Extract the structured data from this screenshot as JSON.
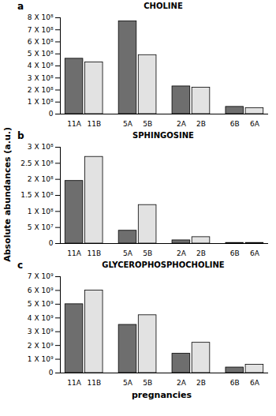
{
  "y_label": "Absolute abundances (a.u.)",
  "x_label": "pregnancies",
  "chart_data": [
    {
      "type": "bar",
      "panel": "a",
      "title": "CHOLINE",
      "categories": [
        "11A",
        "11B",
        "5A",
        "5B",
        "2A",
        "2B",
        "6B",
        "6A"
      ],
      "values": [
        460000000,
        430000000,
        770000000,
        490000000,
        230000000,
        220000000,
        60000000,
        50000000
      ],
      "colors": [
        "#6e6e6e",
        "#e2e2e2",
        "#6e6e6e",
        "#e2e2e2",
        "#6e6e6e",
        "#e2e2e2",
        "#6e6e6e",
        "#e2e2e2"
      ],
      "ylim": [
        0,
        800000000
      ],
      "yticks": [
        0,
        {
          "value": 100000000,
          "label": "1 X 10⁸"
        },
        {
          "value": 200000000,
          "label": "2 X 10⁸"
        },
        {
          "value": 300000000,
          "label": "3 X 10⁸"
        },
        {
          "value": 400000000,
          "label": "4 X 10⁸"
        },
        {
          "value": 500000000,
          "label": "5 X 10⁸"
        },
        {
          "value": 600000000,
          "label": "6 X 10⁸"
        },
        {
          "value": 700000000,
          "label": "7 X 10⁸"
        },
        {
          "value": 800000000,
          "label": "8 X 10⁸"
        }
      ]
    },
    {
      "type": "bar",
      "panel": "b",
      "title": "SPHINGOSINE",
      "categories": [
        "11A",
        "11B",
        "5A",
        "5B",
        "2A",
        "2B",
        "6B",
        "6A"
      ],
      "values": [
        195000000,
        270000000,
        40000000,
        120000000,
        10000000,
        20000000,
        2000000,
        2000000
      ],
      "colors": [
        "#6e6e6e",
        "#e2e2e2",
        "#6e6e6e",
        "#e2e2e2",
        "#6e6e6e",
        "#e2e2e2",
        "#6e6e6e",
        "#e2e2e2"
      ],
      "ylim": [
        0,
        300000000
      ],
      "yticks": [
        0,
        {
          "value": 50000000,
          "label": "5 X 10⁷"
        },
        {
          "value": 100000000,
          "label": "1 X 10⁸"
        },
        {
          "value": 150000000,
          "label": "1.5 X 10⁸"
        },
        {
          "value": 200000000,
          "label": "2 X 10⁸"
        },
        {
          "value": 250000000,
          "label": "2.5 X 10⁸"
        },
        {
          "value": 300000000,
          "label": "3 X 10⁸"
        }
      ]
    },
    {
      "type": "bar",
      "panel": "c",
      "title": "GLYCEROPHOSPHOCHOLINE",
      "categories": [
        "11A",
        "11B",
        "5A",
        "5B",
        "2A",
        "2B",
        "6B",
        "6A"
      ],
      "values": [
        5000000000,
        6000000000,
        3500000000,
        4200000000,
        1400000000,
        2200000000,
        400000000,
        600000000
      ],
      "colors": [
        "#6e6e6e",
        "#e2e2e2",
        "#6e6e6e",
        "#e2e2e2",
        "#6e6e6e",
        "#e2e2e2",
        "#6e6e6e",
        "#e2e2e2"
      ],
      "ylim": [
        0,
        7000000000
      ],
      "yticks": [
        0,
        {
          "value": 1000000000,
          "label": "1 X 10⁹"
        },
        {
          "value": 2000000000,
          "label": "2 X 10⁹"
        },
        {
          "value": 3000000000,
          "label": "3 X 10⁹"
        },
        {
          "value": 4000000000,
          "label": "4 X 10⁹"
        },
        {
          "value": 5000000000,
          "label": "5 X 10⁹"
        },
        {
          "value": 6000000000,
          "label": "6 X 10⁹"
        },
        {
          "value": 7000000000,
          "label": "7 X 10⁹"
        }
      ]
    }
  ]
}
